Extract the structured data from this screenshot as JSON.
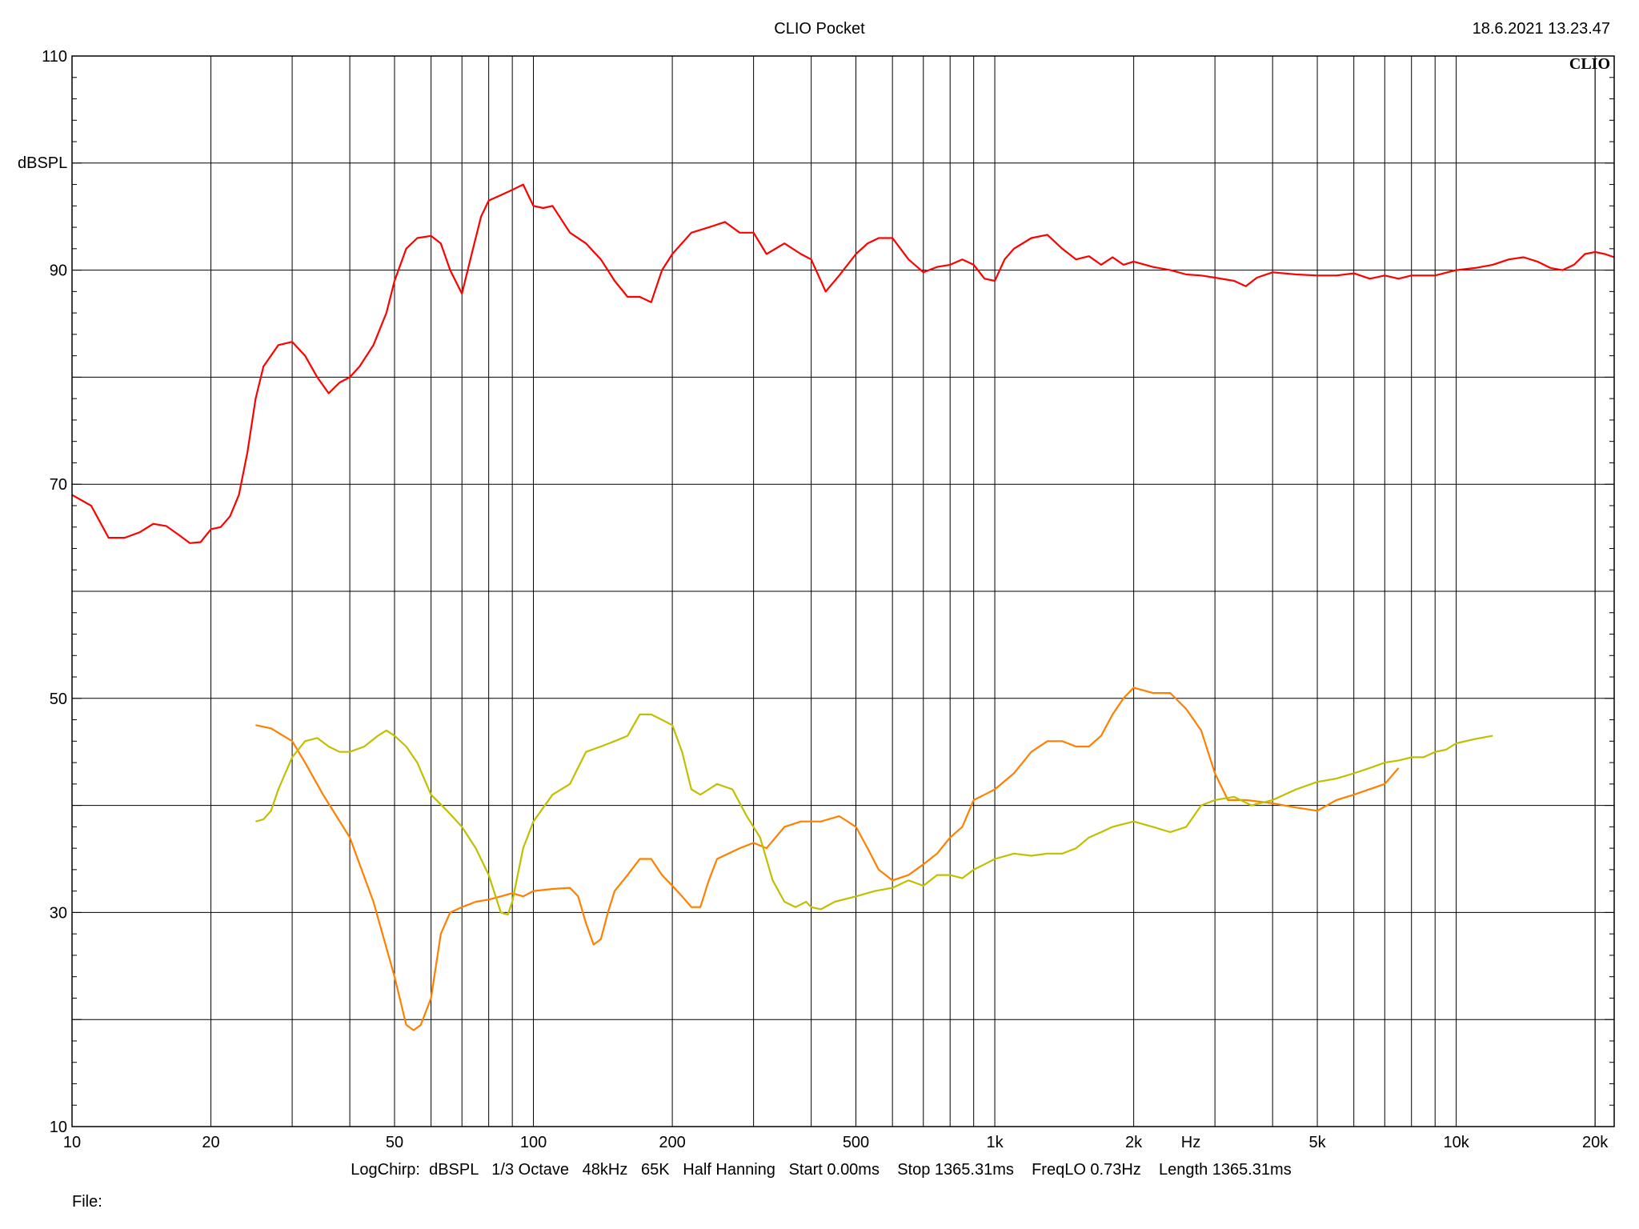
{
  "header": {
    "title": "CLIO Pocket",
    "timestamp": "18.6.2021 13.23.47",
    "logo": "CLIO"
  },
  "footer": {
    "settings": "LogChirp:  dBSPL   1/3 Octave   48kHz   65K   Half Hanning   Start 0.00ms    Stop 1365.31ms    FreqLO 0.73Hz    Length 1365.31ms",
    "file_label": "File:"
  },
  "chart_data": {
    "type": "line",
    "title": "CLIO Pocket",
    "xlabel": "Hz",
    "ylabel": "dBSPL",
    "x_scale": "log",
    "xlim": [
      10,
      22000
    ],
    "ylim": [
      10,
      110
    ],
    "grid": true,
    "y_ticks": [
      {
        "value": 110,
        "label": "110"
      },
      {
        "value": 90,
        "label": "90"
      },
      {
        "value": 70,
        "label": "70"
      },
      {
        "value": 50,
        "label": "50"
      },
      {
        "value": 30,
        "label": "30"
      },
      {
        "value": 10,
        "label": "10"
      }
    ],
    "x_ticks": [
      {
        "value": 10,
        "label": "10"
      },
      {
        "value": 20,
        "label": "20"
      },
      {
        "value": 50,
        "label": "50"
      },
      {
        "value": 100,
        "label": "100"
      },
      {
        "value": 200,
        "label": "200"
      },
      {
        "value": 500,
        "label": "500"
      },
      {
        "value": 1000,
        "label": "1k"
      },
      {
        "value": 2000,
        "label": "2k"
      },
      {
        "value": 5000,
        "label": "5k"
      },
      {
        "value": 10000,
        "label": "10k"
      },
      {
        "value": 20000,
        "label": "20k"
      }
    ],
    "series": [
      {
        "color": "#ff0000",
        "points": [
          [
            10,
            69
          ],
          [
            11,
            68
          ],
          [
            12,
            65
          ],
          [
            13,
            65
          ],
          [
            14,
            65.5
          ],
          [
            15,
            66.3
          ],
          [
            16,
            66.1
          ],
          [
            17,
            65.3
          ],
          [
            18,
            64.5
          ],
          [
            19,
            64.6
          ],
          [
            20,
            65.8
          ],
          [
            21,
            66
          ],
          [
            22,
            67
          ],
          [
            23,
            69
          ],
          [
            24,
            73
          ],
          [
            25,
            78
          ],
          [
            26,
            81
          ],
          [
            28,
            83
          ],
          [
            30,
            83.3
          ],
          [
            32,
            82
          ],
          [
            34,
            80
          ],
          [
            36,
            78.5
          ],
          [
            38,
            79.5
          ],
          [
            40,
            80
          ],
          [
            42,
            81
          ],
          [
            45,
            83
          ],
          [
            48,
            86
          ],
          [
            50,
            89
          ],
          [
            53,
            92
          ],
          [
            56,
            93
          ],
          [
            60,
            93.2
          ],
          [
            63,
            92.5
          ],
          [
            66,
            90
          ],
          [
            70,
            87.8
          ],
          [
            73,
            91
          ],
          [
            77,
            95
          ],
          [
            80,
            96.5
          ],
          [
            85,
            97
          ],
          [
            90,
            97.5
          ],
          [
            95,
            98
          ],
          [
            100,
            96
          ],
          [
            105,
            95.8
          ],
          [
            110,
            96
          ],
          [
            120,
            93.5
          ],
          [
            130,
            92.5
          ],
          [
            140,
            91
          ],
          [
            150,
            89
          ],
          [
            160,
            87.5
          ],
          [
            170,
            87.5
          ],
          [
            180,
            87
          ],
          [
            190,
            90
          ],
          [
            200,
            91.5
          ],
          [
            220,
            93.5
          ],
          [
            240,
            94
          ],
          [
            260,
            94.5
          ],
          [
            280,
            93.5
          ],
          [
            300,
            93.5
          ],
          [
            320,
            91.5
          ],
          [
            350,
            92.5
          ],
          [
            380,
            91.5
          ],
          [
            400,
            91
          ],
          [
            430,
            88
          ],
          [
            460,
            89.5
          ],
          [
            500,
            91.5
          ],
          [
            530,
            92.5
          ],
          [
            560,
            93
          ],
          [
            600,
            93
          ],
          [
            650,
            91
          ],
          [
            700,
            89.8
          ],
          [
            750,
            90.3
          ],
          [
            800,
            90.5
          ],
          [
            850,
            91
          ],
          [
            900,
            90.5
          ],
          [
            950,
            89.2
          ],
          [
            1000,
            89
          ],
          [
            1050,
            91
          ],
          [
            1100,
            92
          ],
          [
            1200,
            93
          ],
          [
            1300,
            93.3
          ],
          [
            1400,
            92
          ],
          [
            1500,
            91
          ],
          [
            1600,
            91.3
          ],
          [
            1700,
            90.5
          ],
          [
            1800,
            91.2
          ],
          [
            1900,
            90.5
          ],
          [
            2000,
            90.8
          ],
          [
            2200,
            90.3
          ],
          [
            2400,
            90
          ],
          [
            2600,
            89.6
          ],
          [
            2800,
            89.5
          ],
          [
            3000,
            89.3
          ],
          [
            3300,
            89
          ],
          [
            3500,
            88.5
          ],
          [
            3700,
            89.3
          ],
          [
            4000,
            89.8
          ],
          [
            4500,
            89.6
          ],
          [
            5000,
            89.5
          ],
          [
            5500,
            89.5
          ],
          [
            6000,
            89.7
          ],
          [
            6500,
            89.2
          ],
          [
            7000,
            89.5
          ],
          [
            7500,
            89.2
          ],
          [
            8000,
            89.5
          ],
          [
            9000,
            89.5
          ],
          [
            10000,
            90
          ],
          [
            11000,
            90.2
          ],
          [
            12000,
            90.5
          ],
          [
            13000,
            91
          ],
          [
            14000,
            91.2
          ],
          [
            15000,
            90.8
          ],
          [
            16000,
            90.2
          ],
          [
            17000,
            90
          ],
          [
            18000,
            90.5
          ],
          [
            19000,
            91.5
          ],
          [
            20000,
            91.7
          ],
          [
            21000,
            91.5
          ],
          [
            22000,
            91.2
          ]
        ]
      },
      {
        "color": "#ff8000",
        "points": [
          [
            25,
            47.5
          ],
          [
            27,
            47.2
          ],
          [
            30,
            46
          ],
          [
            32,
            44
          ],
          [
            35,
            41
          ],
          [
            40,
            37
          ],
          [
            45,
            31
          ],
          [
            50,
            24
          ],
          [
            53,
            19.5
          ],
          [
            55,
            19
          ],
          [
            57,
            19.5
          ],
          [
            60,
            22
          ],
          [
            63,
            28
          ],
          [
            66,
            30
          ],
          [
            70,
            30.5
          ],
          [
            75,
            31
          ],
          [
            80,
            31.2
          ],
          [
            85,
            31.5
          ],
          [
            90,
            31.8
          ],
          [
            95,
            31.5
          ],
          [
            100,
            32
          ],
          [
            110,
            32.2
          ],
          [
            120,
            32.3
          ],
          [
            125,
            31.5
          ],
          [
            130,
            29
          ],
          [
            135,
            27
          ],
          [
            140,
            27.5
          ],
          [
            145,
            30
          ],
          [
            150,
            32
          ],
          [
            160,
            33.5
          ],
          [
            170,
            35
          ],
          [
            180,
            35
          ],
          [
            190,
            33.5
          ],
          [
            200,
            32.5
          ],
          [
            210,
            31.5
          ],
          [
            220,
            30.5
          ],
          [
            230,
            30.5
          ],
          [
            240,
            33
          ],
          [
            250,
            35
          ],
          [
            280,
            36
          ],
          [
            300,
            36.5
          ],
          [
            320,
            36
          ],
          [
            350,
            38
          ],
          [
            380,
            38.5
          ],
          [
            420,
            38.5
          ],
          [
            460,
            39
          ],
          [
            500,
            38
          ],
          [
            530,
            36
          ],
          [
            560,
            34
          ],
          [
            600,
            33
          ],
          [
            650,
            33.5
          ],
          [
            700,
            34.5
          ],
          [
            750,
            35.5
          ],
          [
            800,
            37
          ],
          [
            850,
            38
          ],
          [
            900,
            40.5
          ],
          [
            950,
            41
          ],
          [
            1000,
            41.5
          ],
          [
            1100,
            43
          ],
          [
            1200,
            45
          ],
          [
            1300,
            46
          ],
          [
            1400,
            46
          ],
          [
            1500,
            45.5
          ],
          [
            1600,
            45.5
          ],
          [
            1700,
            46.5
          ],
          [
            1800,
            48.5
          ],
          [
            1900,
            50
          ],
          [
            2000,
            51
          ],
          [
            2200,
            50.5
          ],
          [
            2400,
            50.5
          ],
          [
            2600,
            49
          ],
          [
            2800,
            47
          ],
          [
            3000,
            43
          ],
          [
            3200,
            40.5
          ],
          [
            3500,
            40.5
          ],
          [
            4000,
            40.2
          ],
          [
            4500,
            39.8
          ],
          [
            5000,
            39.5
          ],
          [
            5500,
            40.5
          ],
          [
            6000,
            41
          ],
          [
            7000,
            42
          ],
          [
            7500,
            43.5
          ]
        ]
      },
      {
        "color": "#c0c000",
        "points": [
          [
            25,
            38.5
          ],
          [
            26,
            38.7
          ],
          [
            27,
            39.5
          ],
          [
            28,
            41.5
          ],
          [
            30,
            44.5
          ],
          [
            32,
            46
          ],
          [
            34,
            46.3
          ],
          [
            36,
            45.5
          ],
          [
            38,
            45
          ],
          [
            40,
            45
          ],
          [
            43,
            45.5
          ],
          [
            46,
            46.5
          ],
          [
            48,
            47
          ],
          [
            50,
            46.5
          ],
          [
            53,
            45.5
          ],
          [
            56,
            44
          ],
          [
            60,
            41
          ],
          [
            65,
            39.5
          ],
          [
            70,
            38
          ],
          [
            75,
            36
          ],
          [
            80,
            33.5
          ],
          [
            85,
            30
          ],
          [
            88,
            29.8
          ],
          [
            90,
            31
          ],
          [
            95,
            36
          ],
          [
            100,
            38.5
          ],
          [
            110,
            41
          ],
          [
            120,
            42
          ],
          [
            130,
            45
          ],
          [
            140,
            45.5
          ],
          [
            150,
            46
          ],
          [
            160,
            46.5
          ],
          [
            170,
            48.5
          ],
          [
            180,
            48.5
          ],
          [
            190,
            48
          ],
          [
            200,
            47.5
          ],
          [
            210,
            45
          ],
          [
            220,
            41.5
          ],
          [
            230,
            41
          ],
          [
            240,
            41.5
          ],
          [
            250,
            42
          ],
          [
            270,
            41.5
          ],
          [
            290,
            39
          ],
          [
            310,
            37
          ],
          [
            330,
            33
          ],
          [
            350,
            31
          ],
          [
            370,
            30.5
          ],
          [
            390,
            31
          ],
          [
            400,
            30.5
          ],
          [
            420,
            30.3
          ],
          [
            450,
            31
          ],
          [
            500,
            31.5
          ],
          [
            550,
            32
          ],
          [
            600,
            32.3
          ],
          [
            650,
            33
          ],
          [
            700,
            32.5
          ],
          [
            750,
            33.5
          ],
          [
            800,
            33.5
          ],
          [
            850,
            33.2
          ],
          [
            900,
            34
          ],
          [
            950,
            34.5
          ],
          [
            1000,
            35
          ],
          [
            1100,
            35.5
          ],
          [
            1200,
            35.3
          ],
          [
            1300,
            35.5
          ],
          [
            1400,
            35.5
          ],
          [
            1500,
            36
          ],
          [
            1600,
            37
          ],
          [
            1700,
            37.5
          ],
          [
            1800,
            38
          ],
          [
            2000,
            38.5
          ],
          [
            2200,
            38
          ],
          [
            2400,
            37.5
          ],
          [
            2600,
            38
          ],
          [
            2800,
            40
          ],
          [
            3000,
            40.5
          ],
          [
            3300,
            40.8
          ],
          [
            3600,
            40
          ],
          [
            4000,
            40.5
          ],
          [
            4500,
            41.5
          ],
          [
            5000,
            42.2
          ],
          [
            5500,
            42.5
          ],
          [
            6000,
            43
          ],
          [
            6500,
            43.5
          ],
          [
            7000,
            44
          ],
          [
            7500,
            44.2
          ],
          [
            8000,
            44.5
          ],
          [
            8500,
            44.5
          ],
          [
            9000,
            45
          ],
          [
            9500,
            45.2
          ],
          [
            10000,
            45.8
          ],
          [
            11000,
            46.2
          ],
          [
            12000,
            46.5
          ]
        ]
      }
    ]
  }
}
